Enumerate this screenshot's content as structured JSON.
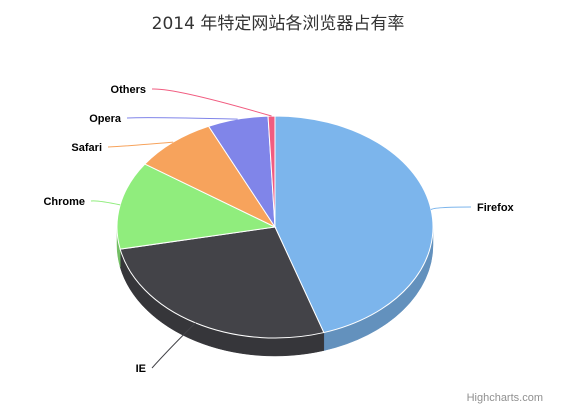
{
  "chart_data": {
    "type": "pie",
    "title": "2014 年特定网站各浏览器占有率",
    "categories": [
      "Firefox",
      "IE",
      "Chrome",
      "Safari",
      "Opera",
      "Others"
    ],
    "values": [
      45.0,
      26.8,
      12.8,
      8.5,
      6.2,
      0.7
    ],
    "colors": [
      "#7cb5ec",
      "#434348",
      "#90ed7d",
      "#f7a35c",
      "#8085e9",
      "#f15c80"
    ],
    "pie_3d": true,
    "start_direction": "top"
  },
  "credits": {
    "text": "Highcharts.com"
  }
}
